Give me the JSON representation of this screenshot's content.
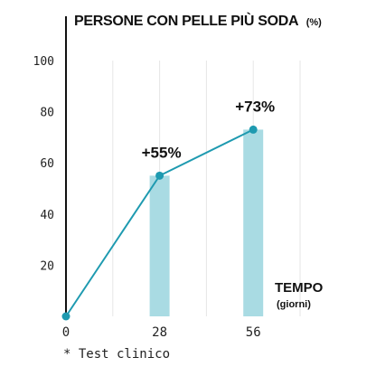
{
  "chart_data": {
    "type": "line",
    "title": "PERSONE CON PELLE PIÙ SODA",
    "title_unit": "(%)",
    "xlabel": "TEMPO",
    "xlabel_unit": "(giorni)",
    "x": [
      0,
      28,
      56
    ],
    "y": [
      0,
      55,
      73
    ],
    "bars": [
      {
        "x": 28,
        "value": 55
      },
      {
        "x": 56,
        "value": 73
      }
    ],
    "annotations": [
      {
        "x": 28,
        "y": 55,
        "text": "+55%"
      },
      {
        "x": 56,
        "y": 73,
        "text": "+73%"
      }
    ],
    "x_ticks": [
      "0",
      "28",
      "56"
    ],
    "y_ticks": [
      "20",
      "40",
      "60",
      "80",
      "100"
    ],
    "xlim": [
      0,
      70
    ],
    "ylim": [
      0,
      100
    ],
    "grid": "vertical",
    "line_color": "#1e9ab0",
    "bar_color": "#a9dbe3"
  },
  "footnote": "* Test clinico"
}
